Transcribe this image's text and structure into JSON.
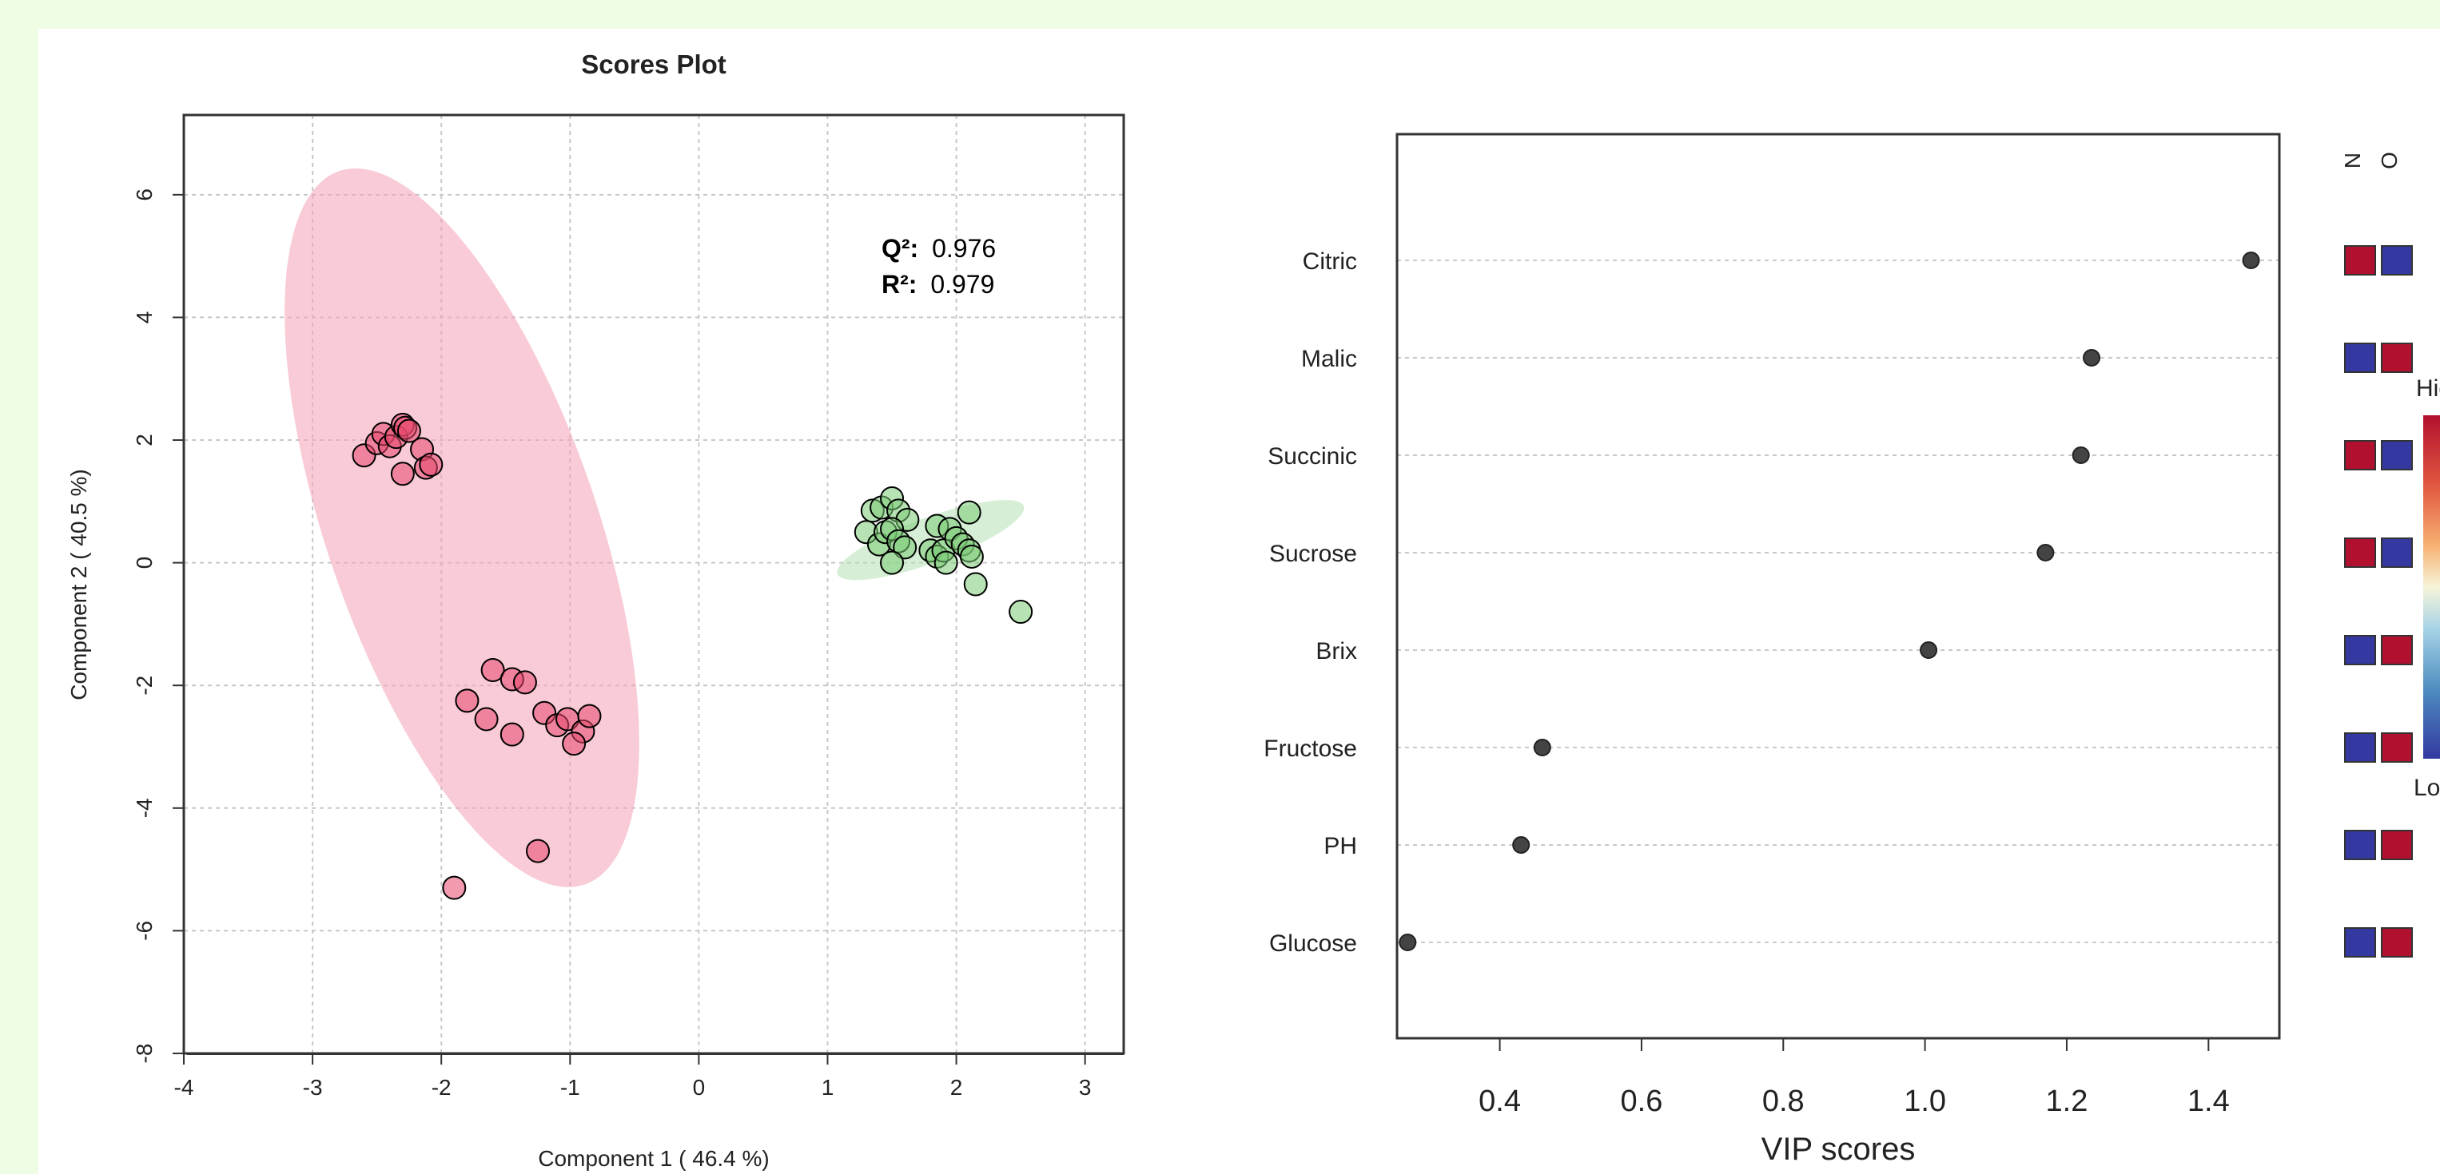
{
  "colors": {
    "background": "#eefde3",
    "group_pink_fill": "#f3a1b7",
    "group_pink_point": "#e8496e",
    "group_green_fill": "#b5e0b2",
    "group_green_point": "#7ccc76",
    "heat_high": "#b2102f",
    "heat_low": "#3339a0"
  },
  "chart_data": [
    {
      "type": "scatter",
      "title": "Scores Plot",
      "xlabel": "Component 1 ( 46.4 %)",
      "ylabel": "Component 2 ( 40.5 %)",
      "xlim": [
        -4,
        3.3
      ],
      "ylim": [
        -8,
        7.3
      ],
      "xticks": [
        "-4",
        "-3",
        "-2",
        "-1",
        "0",
        "1",
        "2",
        "3"
      ],
      "yticks": [
        "-8",
        "-6",
        "-4",
        "-2",
        "0",
        "2",
        "4",
        "6"
      ],
      "grid": true,
      "annotations": {
        "q2_label": "Q²:",
        "q2_value": "0.976",
        "r2_label": "R²:",
        "r2_value": "0.979"
      },
      "ellipses": [
        {
          "group": "pink",
          "center": [
            -1.84,
            0.57
          ],
          "semi_axes": [
            1.05,
            6.15
          ],
          "angle_deg": -19
        },
        {
          "group": "green",
          "center": [
            1.8,
            0.37
          ],
          "semi_axes": [
            0.77,
            0.37
          ],
          "angle_deg": -20
        }
      ],
      "series": [
        {
          "group": "pink",
          "points": [
            [
              -2.6,
              1.75
            ],
            [
              -2.5,
              1.95
            ],
            [
              -2.45,
              2.1
            ],
            [
              -2.4,
              1.9
            ],
            [
              -2.35,
              2.05
            ],
            [
              -2.3,
              2.25
            ],
            [
              -2.28,
              2.2
            ],
            [
              -2.25,
              2.15
            ],
            [
              -2.3,
              1.45
            ],
            [
              -2.15,
              1.85
            ],
            [
              -2.12,
              1.55
            ],
            [
              -2.08,
              1.6
            ],
            [
              -1.6,
              -1.75
            ],
            [
              -1.45,
              -1.9
            ],
            [
              -1.35,
              -1.95
            ],
            [
              -1.8,
              -2.25
            ],
            [
              -1.65,
              -2.55
            ],
            [
              -1.2,
              -2.45
            ],
            [
              -1.1,
              -2.65
            ],
            [
              -1.02,
              -2.55
            ],
            [
              -0.9,
              -2.75
            ],
            [
              -0.85,
              -2.5
            ],
            [
              -0.97,
              -2.95
            ],
            [
              -1.45,
              -2.8
            ],
            [
              -1.25,
              -4.7
            ],
            [
              -1.9,
              -5.3
            ]
          ]
        },
        {
          "group": "green",
          "points": [
            [
              1.35,
              0.85
            ],
            [
              1.42,
              0.9
            ],
            [
              1.5,
              1.05
            ],
            [
              1.55,
              0.85
            ],
            [
              1.62,
              0.7
            ],
            [
              1.3,
              0.5
            ],
            [
              1.4,
              0.3
            ],
            [
              1.45,
              0.5
            ],
            [
              1.5,
              0.55
            ],
            [
              1.55,
              0.35
            ],
            [
              1.6,
              0.25
            ],
            [
              1.5,
              0.0
            ],
            [
              1.8,
              0.2
            ],
            [
              1.85,
              0.1
            ],
            [
              1.9,
              0.2
            ],
            [
              1.85,
              0.6
            ],
            [
              1.95,
              0.55
            ],
            [
              2.0,
              0.4
            ],
            [
              2.05,
              0.3
            ],
            [
              2.1,
              0.2
            ],
            [
              2.12,
              0.1
            ],
            [
              1.92,
              0.0
            ],
            [
              2.1,
              0.82
            ],
            [
              2.15,
              -0.35
            ],
            [
              2.5,
              -0.8
            ]
          ]
        }
      ]
    },
    {
      "type": "scatter",
      "subtype": "dot-plot",
      "xlabel": "VIP scores",
      "xticks": [
        "0.4",
        "0.6",
        "0.8",
        "1.0",
        "1.2",
        "1.4"
      ],
      "xlim": [
        0.255,
        1.5
      ],
      "categories": [
        "Citric",
        "Malic",
        "Succinic",
        "Sucrose",
        "Brix",
        "Fructose",
        "PH",
        "Glucose"
      ],
      "values": [
        1.46,
        1.235,
        1.22,
        1.17,
        1.005,
        0.46,
        0.43,
        0.27
      ],
      "heatmap": {
        "columns": [
          "N",
          "O"
        ],
        "levels": [
          [
            "high",
            "low"
          ],
          [
            "low",
            "high"
          ],
          [
            "high",
            "low"
          ],
          [
            "high",
            "low"
          ],
          [
            "low",
            "high"
          ],
          [
            "low",
            "high"
          ],
          [
            "low",
            "high"
          ],
          [
            "low",
            "high"
          ]
        ]
      },
      "colorbar": {
        "high_label": "High",
        "low_label": "Low"
      }
    }
  ]
}
